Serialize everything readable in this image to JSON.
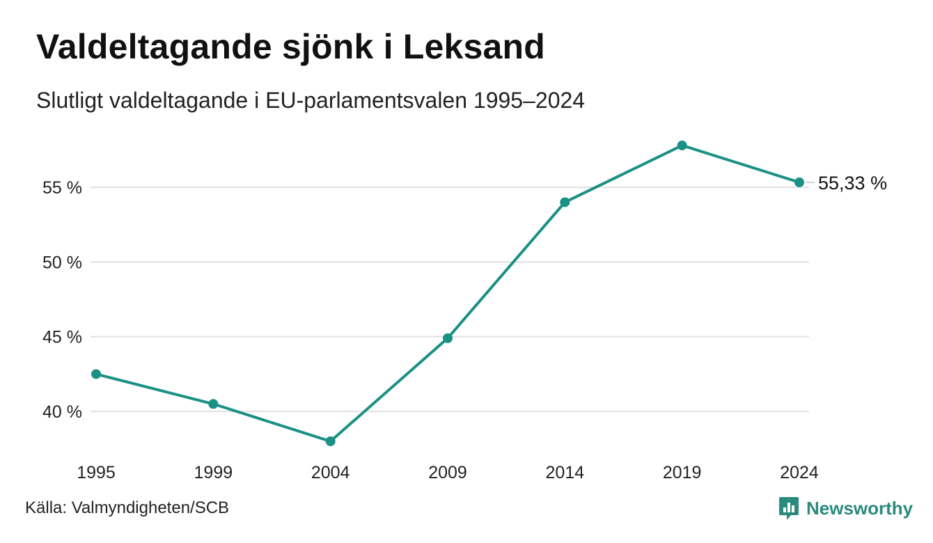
{
  "header": {
    "title": "Valdeltagande sjönk i Leksand",
    "subtitle": "Slutligt valdeltagande i EU-parlamentsvalen 1995–2024"
  },
  "footer": {
    "source": "Källa: Valmyndigheten/SCB",
    "brand_name": "Newsworthy",
    "brand_icon": "chart-speech-bubble-icon"
  },
  "colors": {
    "line": "#1b9085",
    "grid": "#e1e1e1",
    "text": "#222222",
    "brand": "#2a8a7d"
  },
  "chart_data": {
    "type": "line",
    "title": "Valdeltagande sjönk i Leksand",
    "subtitle": "Slutligt valdeltagande i EU-parlamentsvalen 1995–2024",
    "xlabel": "",
    "ylabel": "",
    "categories": [
      "1995",
      "1999",
      "2004",
      "2009",
      "2014",
      "2019",
      "2024"
    ],
    "series": [
      {
        "values": [
          42.5,
          40.5,
          38.0,
          44.9,
          54.0,
          57.8,
          55.33
        ]
      }
    ],
    "y_ticks": [
      40,
      45,
      50,
      55
    ],
    "y_tick_labels": [
      "40 %",
      "45 %",
      "50 %",
      "55 %"
    ],
    "ylim": [
      38,
      57.8
    ],
    "grid": true,
    "legend": "none",
    "end_label": "55,33 %"
  }
}
